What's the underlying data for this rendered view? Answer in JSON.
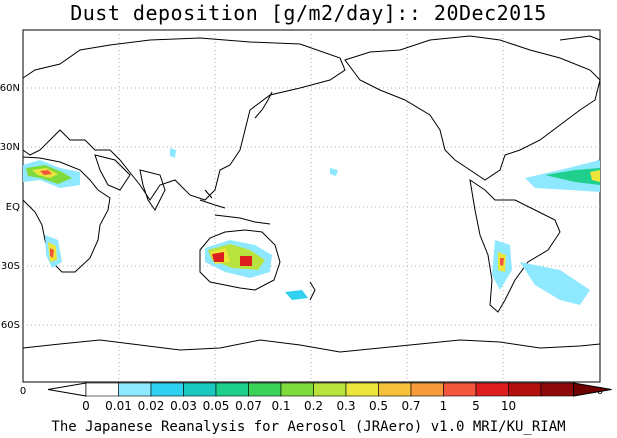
{
  "title": "Dust deposition [g/m2/day]:: 20Dec2015",
  "footer": "The Japanese Reanalysis for Aerosol (JRAero) v1.0 MRI/KU_RIAM",
  "lat_labels": [
    "60N",
    "30N",
    "EQ",
    "30S",
    "60S"
  ],
  "axis_edge_labels": [
    "0",
    "0"
  ],
  "colorbar": {
    "colors": [
      "#ffffff",
      "#ffffff",
      "#8ee8ff",
      "#2fd0f0",
      "#19c8c0",
      "#1ed08c",
      "#3cd25a",
      "#7fda3c",
      "#b8e33c",
      "#ece63c",
      "#f6c23c",
      "#f69a3c",
      "#f2563c",
      "#dc1e1e",
      "#b40f0f",
      "#8c0a0a",
      "#6e0000"
    ],
    "labels": [
      "0",
      "0.01",
      "0.02",
      "0.03",
      "0.05",
      "0.07",
      "0.1",
      "0.2",
      "0.3",
      "0.5",
      "0.7",
      "1",
      "5",
      "10"
    ]
  }
}
